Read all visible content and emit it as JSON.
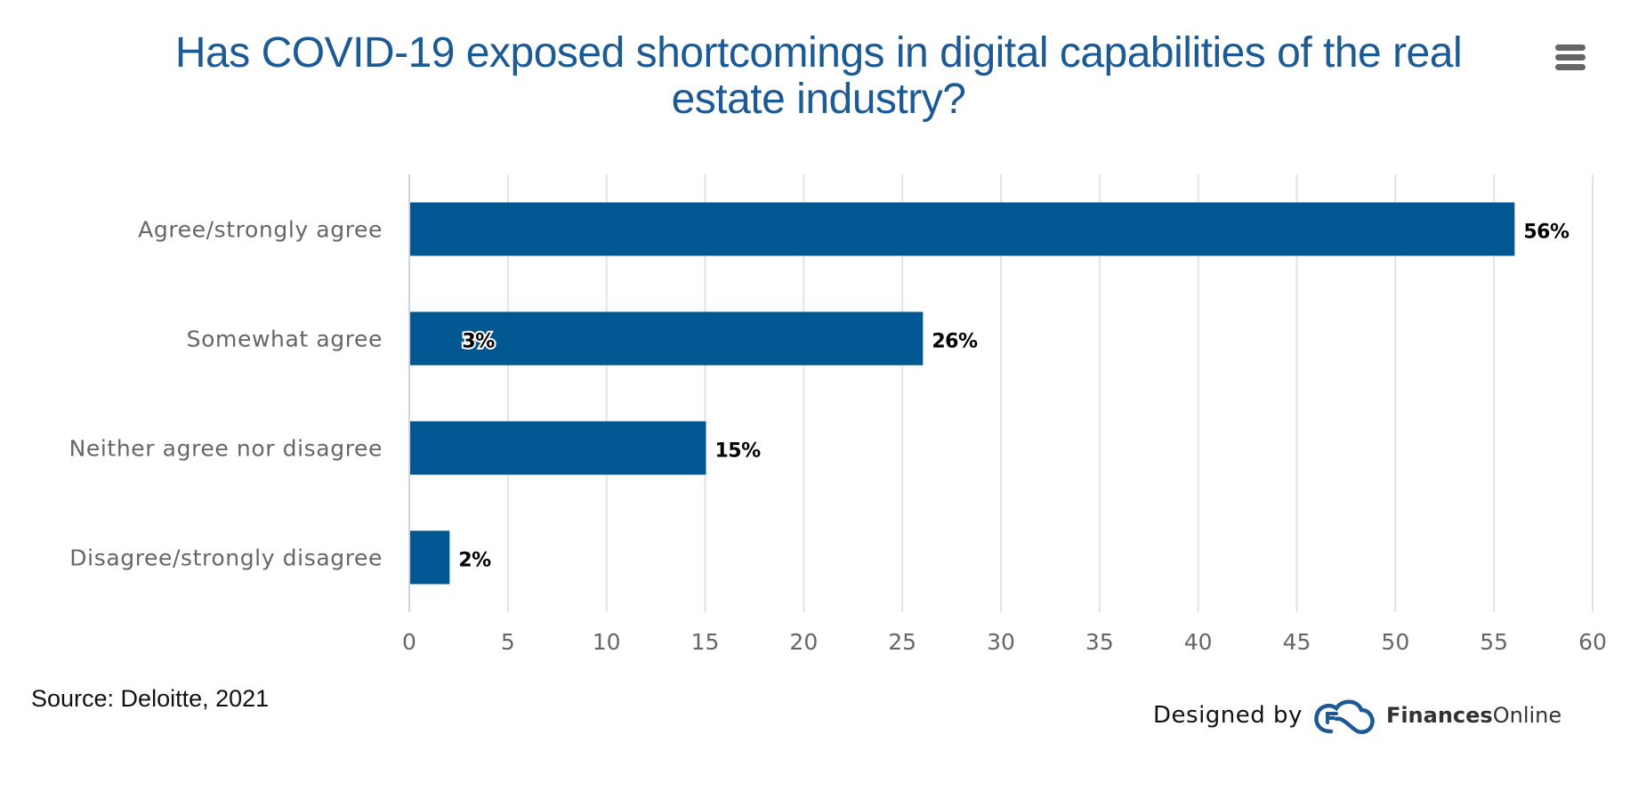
{
  "header": {
    "title_line1": "Has COVID-19 exposed shortcomings in digital capabilities of the real",
    "title_line2": "estate industry?",
    "menu_icon": "hamburger-menu-icon"
  },
  "footer": {
    "source": "Source: Deloitte, 2021",
    "designed_by": "Designed by",
    "brand_bold": "Finances",
    "brand_regular": "Online",
    "brand_icon": "financesonline-cloud-logo-icon"
  },
  "colors": {
    "bar": "#005792",
    "title": "#1b5a94",
    "grid": "#e3e3e3",
    "axis_text": "#666666",
    "category_text": "#666666"
  },
  "chart_data": {
    "type": "bar",
    "orientation": "horizontal",
    "title": "Has COVID-19 exposed shortcomings in digital capabilities of the real estate industry?",
    "categories": [
      "Agree/strongly agree",
      "Somewhat agree",
      "Neither agree nor disagree",
      "Disagree/strongly disagree"
    ],
    "values": [
      56,
      26,
      15,
      2
    ],
    "data_labels": [
      "56%",
      "26%",
      "15%",
      "2%"
    ],
    "extra_annotations": [
      {
        "category": "Somewhat agree",
        "text": "3%",
        "position": "inside-bar"
      }
    ],
    "xlabel": "",
    "ylabel": "",
    "xlim": [
      0,
      60
    ],
    "xticks": [
      0,
      5,
      10,
      15,
      20,
      25,
      30,
      35,
      40,
      45,
      50,
      55,
      60
    ],
    "grid": true,
    "legend": "none"
  }
}
